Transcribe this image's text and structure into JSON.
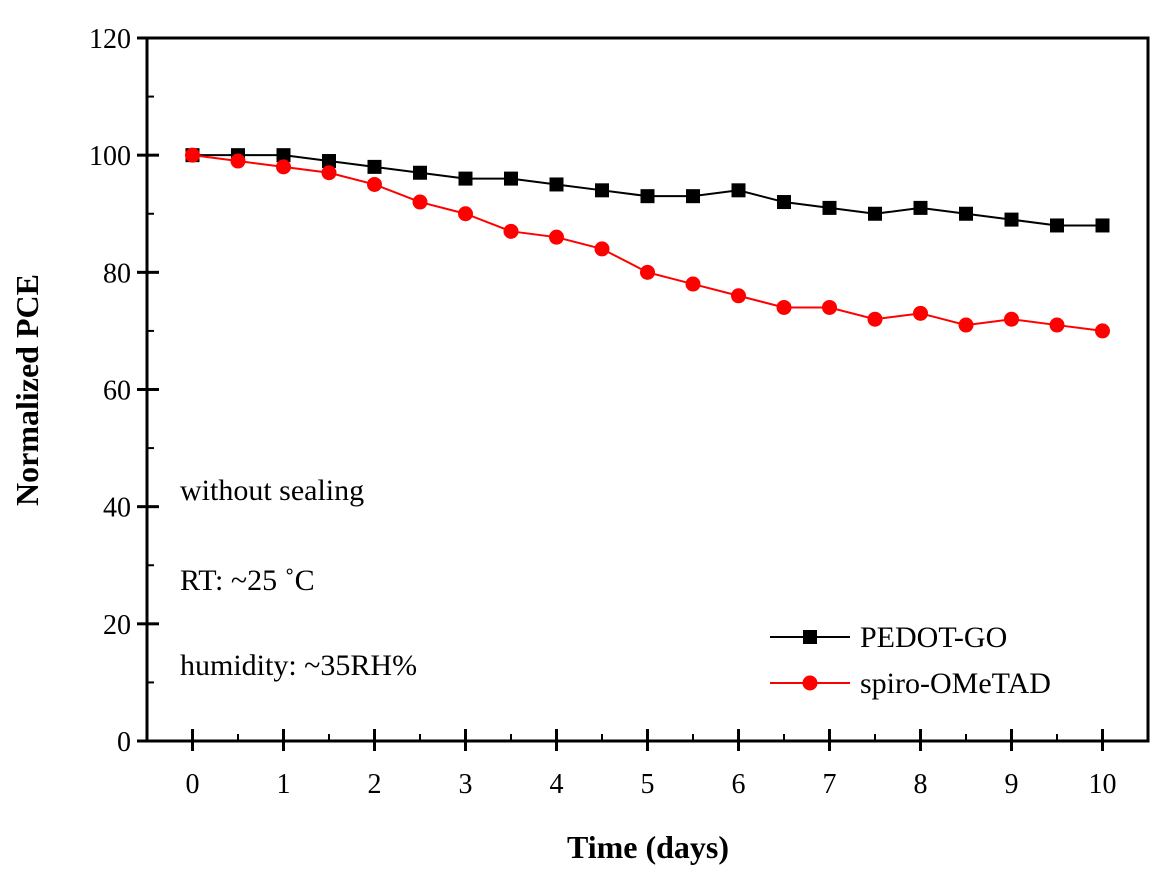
{
  "chart_data": {
    "type": "line",
    "title": "",
    "xlabel": "Time (days)",
    "ylabel": "Normalized PCE",
    "xlim": [
      -0.5,
      10.5
    ],
    "ylim": [
      0,
      120
    ],
    "x_ticks": [
      "0",
      "1",
      "2",
      "3",
      "4",
      "5",
      "6",
      "7",
      "8",
      "9",
      "10"
    ],
    "y_ticks": [
      "0",
      "20",
      "40",
      "60",
      "80",
      "100",
      "120"
    ],
    "grid": false,
    "legend_position": "bottom-right",
    "annotations": [
      "without sealing",
      "RT: ~25 ˚C",
      "humidity: ~35RH%"
    ],
    "x": [
      0,
      0.5,
      1,
      1.5,
      2,
      2.5,
      3,
      3.5,
      4,
      4.5,
      5,
      5.5,
      6,
      6.5,
      7,
      7.5,
      8,
      8.5,
      9,
      9.5,
      10
    ],
    "series": [
      {
        "name": "PEDOT-GO",
        "color": "#000000",
        "marker": "square",
        "values": [
          100,
          100,
          100,
          99,
          98,
          97,
          96,
          96,
          95,
          94,
          93,
          93,
          94,
          92,
          91,
          90,
          91,
          90,
          89,
          88,
          88
        ]
      },
      {
        "name": "spiro-OMeTAD",
        "color": "#ff0000",
        "marker": "circle",
        "values": [
          100,
          99,
          98,
          97,
          95,
          92,
          90,
          87,
          86,
          84,
          80,
          78,
          76,
          74,
          74,
          72,
          73,
          71,
          72,
          71,
          70
        ]
      }
    ]
  }
}
